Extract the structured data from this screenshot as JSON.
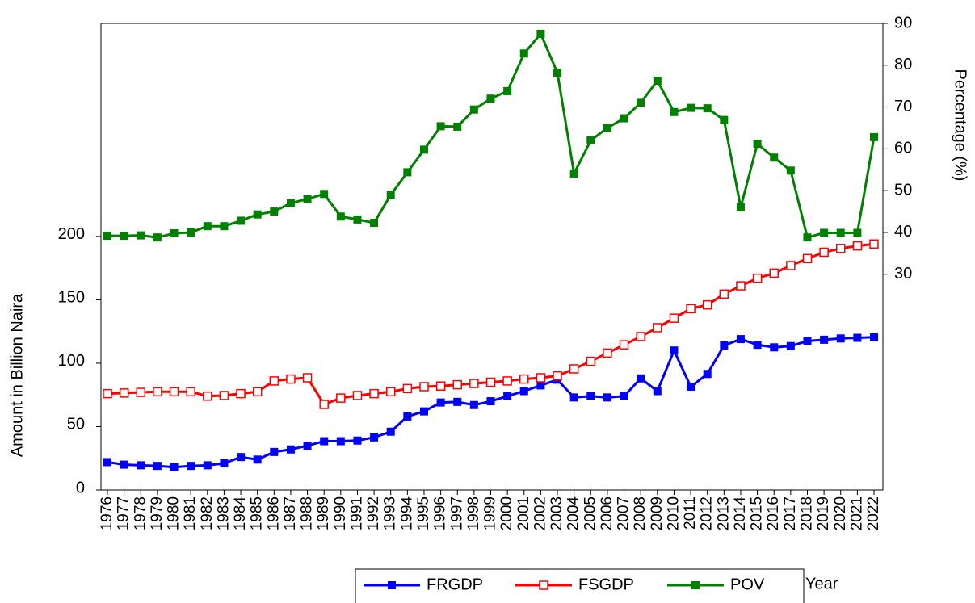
{
  "chart_data": {
    "type": "line",
    "categories": [
      "1976",
      "1977",
      "1978",
      "1979",
      "1980",
      "1981",
      "1982",
      "1983",
      "1984",
      "1985",
      "1986",
      "1987",
      "1988",
      "1989",
      "1990",
      "1991",
      "1992",
      "1993",
      "1994",
      "1995",
      "1996",
      "1997",
      "1998",
      "1999",
      "2000",
      "2001",
      "2002",
      "2003",
      "2004",
      "2005",
      "2006",
      "2007",
      "2008",
      "2009",
      "2010",
      "2011",
      "2012",
      "2013",
      "2014",
      "2015",
      "2016",
      "2017",
      "2018",
      "2019",
      "2020",
      "2021",
      "2022"
    ],
    "xlabel": "Year",
    "ylabel": "Amount in Billion Naira",
    "y2label": "Percentage (%)",
    "ylim": [
      0,
      368
    ],
    "yticks": [
      0,
      50,
      100,
      150,
      200
    ],
    "y2lim": [
      -21.6,
      90
    ],
    "y2ticks": [
      30,
      40,
      50,
      60,
      70,
      80,
      90
    ],
    "legend": "bottom",
    "series": [
      {
        "name": "FRGDP",
        "color": "#0000ff",
        "marker": "square",
        "filled": true,
        "values": [
          22,
          20,
          19.5,
          19,
          18,
          19,
          19.5,
          21,
          26,
          24,
          30,
          32,
          35,
          38.5,
          38.5,
          39,
          41.5,
          46,
          58,
          62,
          69,
          69.5,
          67,
          70,
          74,
          78,
          82.5,
          87,
          73,
          74,
          73,
          74,
          88,
          78,
          110,
          81.5,
          91.5,
          114,
          119,
          114.5,
          112.5,
          113.5,
          117.5,
          118.5,
          119.5,
          120,
          120.5
        ]
      },
      {
        "name": "FSGDP",
        "color": "#ff0000",
        "marker": "square",
        "filled": false,
        "values": [
          76,
          76.5,
          77,
          77.5,
          77.5,
          77.5,
          74,
          74.5,
          76,
          77.5,
          86,
          87.5,
          88.5,
          67.5,
          72.5,
          74.5,
          76,
          77.5,
          80,
          81.5,
          82,
          83,
          84,
          85,
          86,
          87.5,
          88.5,
          90,
          95.5,
          101.5,
          108,
          114.5,
          121,
          128,
          135.5,
          143,
          146,
          154.5,
          161,
          167,
          171,
          177,
          182.5,
          187.5,
          190.5,
          192.5,
          194
        ]
      },
      {
        "name": "POV",
        "color": "#008000",
        "marker": "square",
        "filled": true,
        "axis": "y2",
        "values": [
          39.2,
          39.2,
          39.3,
          38.8,
          39.8,
          40,
          41.5,
          41.5,
          42.8,
          44.3,
          45,
          47,
          48,
          49.2,
          43.8,
          43.1,
          42.3,
          49,
          54.4,
          59.8,
          65.4,
          65.3,
          69.4,
          72,
          73.8,
          82.8,
          87.5,
          78.2,
          54.1,
          62,
          65,
          67.3,
          71,
          76.3,
          68.8,
          69.8,
          69.7,
          66.9,
          46,
          61.2,
          57.9,
          54.8,
          38.8,
          39.9,
          39.9,
          39.9,
          62.8
        ]
      }
    ]
  }
}
